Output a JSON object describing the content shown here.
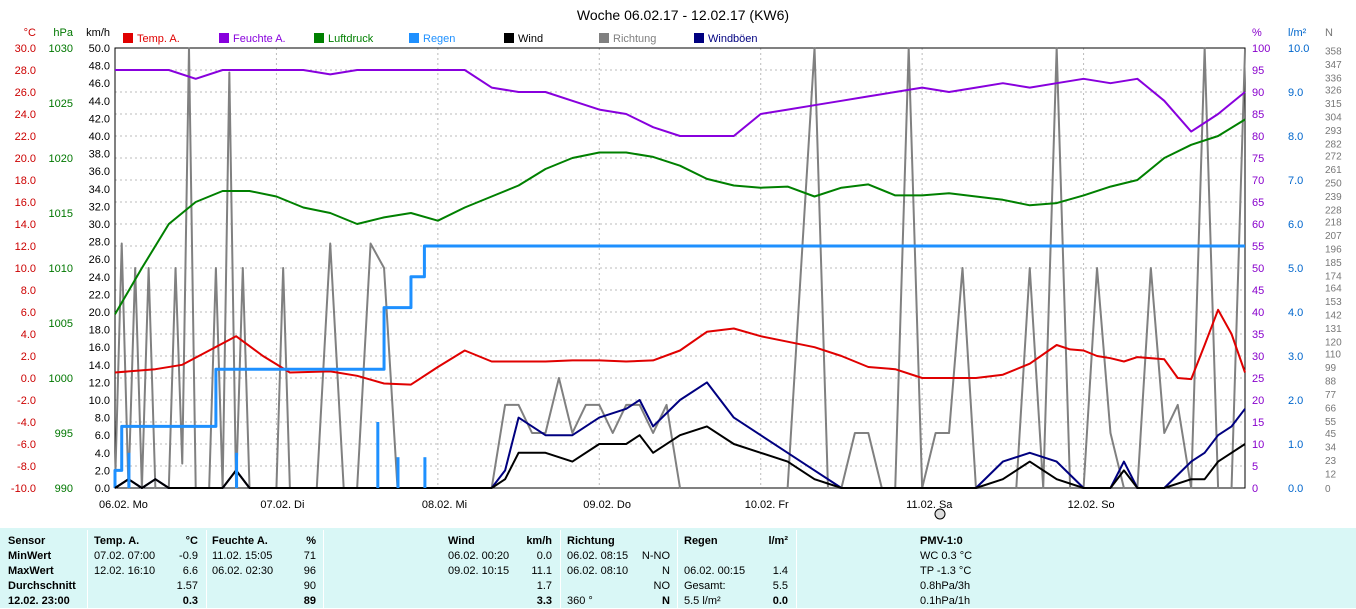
{
  "chart_data": {
    "type": "line",
    "title": "Woche 06.02.17 - 12.02.17 (KW6)",
    "x_days": [
      "06.02. Mo",
      "07.02. Di",
      "08.02. Mi",
      "09.02. Do",
      "10.02. Fr",
      "11.02. Sa",
      "12.02. So"
    ],
    "x_range_hours": [
      0,
      168
    ],
    "grid": true,
    "axes": {
      "temp": {
        "unit": "°C",
        "ylim": [
          -10,
          30
        ],
        "ticks": [
          "30.0",
          "28.0",
          "26.0",
          "24.0",
          "22.0",
          "20.0",
          "18.0",
          "16.0",
          "14.0",
          "12.0",
          "10.0",
          "8.0",
          "6.0",
          "4.0",
          "2.0",
          "0.0",
          "-2.0",
          "-4.0",
          "-6.0",
          "-8.0",
          "-10.0"
        ],
        "color": "#cc0000"
      },
      "pressure": {
        "unit": "hPa",
        "ylim": [
          990,
          1030
        ],
        "ticks": [
          "1030",
          "1025",
          "1020",
          "1015",
          "1010",
          "1005",
          "1000",
          "995",
          "990"
        ],
        "color": "#007700"
      },
      "wind": {
        "unit": "km/h",
        "ylim": [
          0,
          50
        ],
        "ticks": [
          "50.0",
          "48.0",
          "46.0",
          "44.0",
          "42.0",
          "40.0",
          "38.0",
          "36.0",
          "34.0",
          "32.0",
          "30.0",
          "28.0",
          "26.0",
          "24.0",
          "22.0",
          "20.0",
          "18.0",
          "16.0",
          "14.0",
          "12.0",
          "10.0",
          "8.0",
          "6.0",
          "4.0",
          "2.0",
          "0.0"
        ],
        "color": "#000000"
      },
      "humidity": {
        "unit": "%",
        "ylim": [
          0,
          100
        ],
        "ticks": [
          "100",
          "95",
          "90",
          "85",
          "80",
          "75",
          "70",
          "65",
          "60",
          "55",
          "50",
          "45",
          "40",
          "35",
          "30",
          "25",
          "20",
          "15",
          "10",
          "5",
          "0"
        ],
        "color": "#8800cc"
      },
      "rain": {
        "unit": "l/m²",
        "ylim": [
          0,
          10
        ],
        "ticks": [
          "10.0",
          "9.0",
          "8.0",
          "7.0",
          "6.0",
          "5.0",
          "4.0",
          "3.0",
          "2.0",
          "1.0",
          "0.0"
        ],
        "color": "#0066cc"
      },
      "direction": {
        "unit": "N",
        "ylim": [
          0,
          360
        ],
        "ticks": [
          "358",
          "347",
          "336",
          "326",
          "315",
          "304",
          "293",
          "282",
          "272",
          "261",
          "250",
          "239",
          "228",
          "218",
          "207",
          "196",
          "185",
          "174",
          "164",
          "153",
          "142",
          "131",
          "120",
          "110",
          "99",
          "88",
          "77",
          "66",
          "55",
          "45",
          "34",
          "23",
          "12",
          "0"
        ],
        "color": "#777777"
      }
    },
    "legend": [
      "Temp. A.",
      "Feuchte A.",
      "Luftdruck",
      "Regen",
      "Wind",
      "Richtung",
      "Windböen"
    ],
    "series": [
      {
        "name": "Temp. A.",
        "axis": "temp",
        "color": "#e00000",
        "x": [
          0,
          6,
          10,
          14,
          18,
          22,
          26,
          32,
          36,
          40,
          44,
          48,
          52,
          56,
          60,
          64,
          68,
          72,
          76,
          80,
          84,
          88,
          92,
          96,
          100,
          104,
          108,
          112,
          116,
          120,
          124,
          128,
          132,
          136,
          140,
          142,
          144,
          146,
          148,
          150,
          152,
          156,
          158,
          160,
          162,
          164,
          166,
          168
        ],
        "y": [
          0.5,
          0.8,
          1.2,
          2.5,
          3.8,
          2.0,
          0.5,
          0.6,
          0.2,
          -0.5,
          -0.6,
          1.0,
          2.5,
          1.5,
          1.5,
          1.5,
          1.6,
          1.6,
          1.5,
          1.6,
          2.5,
          4.2,
          4.5,
          3.8,
          3.3,
          2.8,
          2.0,
          1.0,
          0.8,
          0.0,
          0.0,
          0.0,
          0.3,
          1.3,
          3.0,
          2.6,
          2.5,
          2.0,
          1.8,
          1.5,
          1.9,
          1.7,
          0.0,
          -0.1,
          3.0,
          6.2,
          4.0,
          0.5
        ]
      },
      {
        "name": "Feuchte A.",
        "axis": "humidity",
        "color": "#8800dd",
        "x": [
          0,
          4,
          8,
          12,
          16,
          20,
          24,
          28,
          32,
          36,
          40,
          44,
          48,
          52,
          56,
          60,
          64,
          68,
          72,
          76,
          80,
          84,
          88,
          92,
          96,
          100,
          104,
          108,
          112,
          116,
          120,
          124,
          128,
          132,
          136,
          140,
          144,
          148,
          152,
          156,
          160,
          164,
          168
        ],
        "y": [
          95,
          95,
          95,
          93,
          95,
          95,
          95,
          95,
          94,
          95,
          95,
          95,
          95,
          95,
          91,
          90,
          90,
          88,
          86,
          85,
          82,
          80,
          80,
          80,
          85,
          86,
          87,
          88,
          89,
          90,
          91,
          90,
          91,
          92,
          91,
          92,
          93,
          92,
          93,
          88,
          81,
          85,
          90
        ]
      },
      {
        "name": "Luftdruck",
        "axis": "pressure",
        "color": "#008000",
        "x": [
          0,
          4,
          8,
          12,
          16,
          20,
          24,
          28,
          32,
          36,
          40,
          44,
          48,
          52,
          56,
          60,
          64,
          68,
          72,
          76,
          80,
          84,
          88,
          92,
          96,
          100,
          104,
          108,
          112,
          116,
          120,
          124,
          128,
          132,
          136,
          140,
          144,
          148,
          152,
          156,
          160,
          164,
          168
        ],
        "y": [
          1005.8,
          1010,
          1014,
          1016,
          1017,
          1017,
          1016.5,
          1015.5,
          1015,
          1014,
          1014.6,
          1015,
          1014.3,
          1015.5,
          1016.5,
          1017.5,
          1019,
          1020,
          1020.5,
          1020.5,
          1020.1,
          1019.3,
          1018.1,
          1017.5,
          1017.3,
          1017.4,
          1016.5,
          1017.3,
          1017.6,
          1016.6,
          1016.6,
          1016.8,
          1016.5,
          1016.2,
          1015.7,
          1015.9,
          1016.6,
          1017.4,
          1018,
          1020,
          1021.2,
          1022,
          1023.5
        ]
      },
      {
        "name": "Regen",
        "axis": "rain",
        "color": "#1e90ff",
        "x": [
          0,
          1,
          14,
          15,
          26,
          39,
          40,
          41,
          44,
          46,
          168
        ],
        "y": [
          0.4,
          1.4,
          1.4,
          2.7,
          2.7,
          2.7,
          4.1,
          4.1,
          4.8,
          5.5,
          5.5
        ]
      },
      {
        "name": "Wind",
        "axis": "wind",
        "color": "#000000",
        "x": [
          0,
          2,
          4,
          6,
          8,
          12,
          16,
          18,
          20,
          24,
          28,
          32,
          36,
          40,
          44,
          48,
          52,
          56,
          58,
          60,
          64,
          68,
          72,
          76,
          78,
          80,
          84,
          88,
          92,
          96,
          100,
          104,
          108,
          112,
          116,
          120,
          124,
          128,
          132,
          136,
          140,
          144,
          148,
          150,
          152,
          156,
          160,
          162,
          164,
          166,
          168
        ],
        "y": [
          0,
          1,
          0,
          1,
          0,
          0,
          0,
          2,
          0,
          0,
          0,
          0,
          0,
          0,
          0,
          0,
          0,
          0,
          1,
          4,
          4,
          3,
          5,
          5,
          6,
          4,
          6,
          7,
          5,
          4,
          3,
          1,
          0,
          0,
          0,
          0,
          0,
          0,
          1,
          3,
          1,
          0,
          0,
          2,
          0,
          0,
          1,
          1,
          3,
          4,
          5
        ]
      },
      {
        "name": "Windböen",
        "axis": "wind",
        "color": "#000080",
        "x": [
          0,
          2,
          4,
          6,
          8,
          12,
          16,
          18,
          20,
          24,
          28,
          32,
          36,
          40,
          44,
          48,
          52,
          56,
          58,
          60,
          64,
          68,
          72,
          76,
          78,
          80,
          84,
          88,
          92,
          96,
          100,
          104,
          108,
          112,
          116,
          120,
          124,
          128,
          132,
          136,
          140,
          144,
          148,
          150,
          152,
          156,
          160,
          162,
          164,
          166,
          168
        ],
        "y": [
          0,
          1,
          0,
          1,
          0,
          0,
          0,
          2,
          0,
          0,
          0,
          0,
          0,
          0,
          0,
          0,
          0,
          0,
          2,
          8,
          6,
          6,
          8,
          9,
          10,
          7,
          10,
          12,
          8,
          6,
          4,
          2,
          0,
          0,
          0,
          0,
          0,
          0,
          3,
          4,
          3,
          0,
          0,
          3,
          0,
          0,
          3,
          4,
          6,
          7,
          9
        ]
      },
      {
        "name": "Richtung",
        "axis": "direction",
        "color": "#808080",
        "x": [
          0,
          1,
          2,
          3,
          4,
          5,
          6,
          7,
          8,
          9,
          10,
          11,
          12,
          13,
          14,
          15,
          16,
          17,
          18,
          19,
          20,
          21,
          22,
          23,
          24,
          25,
          26,
          27,
          28,
          30,
          32,
          34,
          36,
          38,
          40,
          42,
          44,
          46,
          48,
          50,
          52,
          54,
          56,
          58,
          60,
          62,
          64,
          66,
          68,
          70,
          72,
          74,
          76,
          78,
          80,
          82,
          84,
          86,
          88,
          90,
          92,
          96,
          100,
          104,
          106,
          108,
          110,
          112,
          114,
          116,
          118,
          120,
          122,
          124,
          126,
          128,
          130,
          132,
          134,
          136,
          138,
          140,
          142,
          144,
          146,
          148,
          150,
          152,
          154,
          156,
          158,
          160,
          162,
          164,
          166,
          168
        ],
        "y": [
          0,
          200,
          0,
          180,
          0,
          180,
          0,
          0,
          0,
          180,
          20,
          360,
          0,
          0,
          0,
          180,
          0,
          340,
          0,
          180,
          0,
          0,
          0,
          0,
          0,
          180,
          0,
          0,
          0,
          0,
          200,
          0,
          0,
          200,
          180,
          0,
          0,
          0,
          0,
          0,
          0,
          0,
          0,
          68,
          68,
          45,
          45,
          90,
          45,
          68,
          68,
          45,
          68,
          68,
          45,
          68,
          0,
          0,
          0,
          0,
          0,
          0,
          0,
          360,
          0,
          0,
          45,
          45,
          0,
          0,
          360,
          0,
          45,
          45,
          180,
          0,
          0,
          0,
          0,
          180,
          0,
          360,
          0,
          0,
          180,
          45,
          0,
          0,
          180,
          45,
          68,
          0,
          360,
          0,
          0,
          358
        ]
      }
    ]
  },
  "stats": {
    "headers": {
      "sensor": "Sensor",
      "temp": "Temp. A.",
      "temp_unit": "°C",
      "hum": "Feuchte A.",
      "hum_unit": "%",
      "wind": "Wind",
      "wind_unit": "km/h",
      "dir": "Richtung",
      "rain": "Regen",
      "rain_unit": "l/m²",
      "pmv": "PMV-1:0"
    },
    "rows": [
      {
        "label": "MinWert",
        "temp_time": "07.02.  07:00",
        "temp_val": "-0.9",
        "hum_time": "11.02.  15:05",
        "hum_val": "71",
        "wind_time": "06.02.  00:20",
        "wind_val": "0.0",
        "dir_time": "06.02.  08:15",
        "dir_val": "N-NO",
        "rain_time": "",
        "rain_val": "",
        "pmv": "WC 0.3 °C"
      },
      {
        "label": "MaxWert",
        "temp_time": "12.02.  16:10",
        "temp_val": "6.6",
        "hum_time": "06.02.  02:30",
        "hum_val": "96",
        "wind_time": "09.02.  10:15",
        "wind_val": "11.1",
        "dir_time": "06.02.  08:10",
        "dir_val": "N",
        "rain_time": "06.02.  00:15",
        "rain_val": "1.4",
        "pmv": "TP -1.3 °C"
      },
      {
        "label": "Durchschnitt",
        "temp_time": "",
        "temp_val": "1.57",
        "hum_time": "",
        "hum_val": "90",
        "wind_time": "",
        "wind_val": "1.7",
        "dir_time": "",
        "dir_val": "NO",
        "rain_time": "Gesamt:",
        "rain_val": "5.5",
        "pmv": "0.8hPa/3h"
      },
      {
        "label": "12.02. 23:00",
        "temp_time": "",
        "temp_val": "0.3",
        "hum_time": "",
        "hum_val": "89",
        "wind_time": "",
        "wind_val": "3.3",
        "dir_time": "360 °",
        "dir_val": "N",
        "rain_time": "5.5 l/m²",
        "rain_val": "0.0",
        "pmv": "0.1hPa/1h"
      }
    ]
  }
}
